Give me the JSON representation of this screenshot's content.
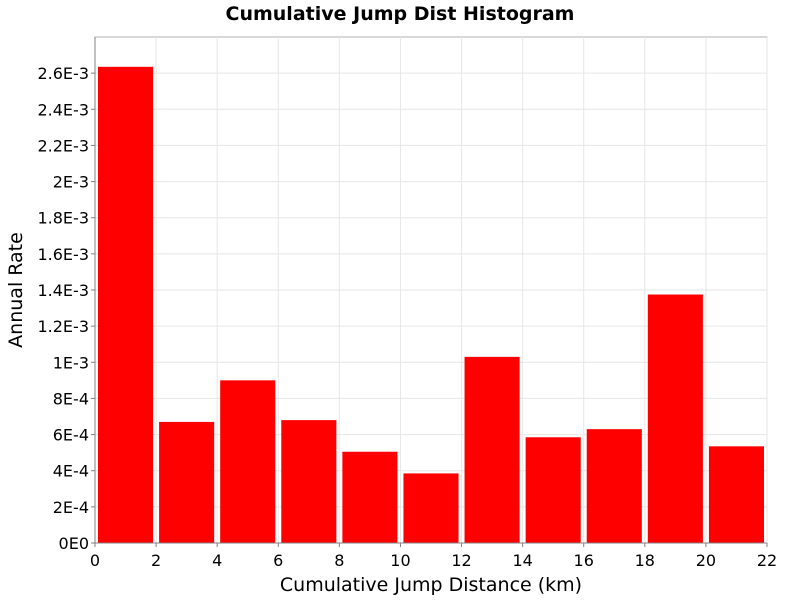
{
  "chart_data": {
    "type": "bar",
    "title": "Cumulative Jump Dist Histogram",
    "xlabel": "Cumulative Jump Distance (km)",
    "ylabel": "Annual Rate",
    "xlim": [
      0,
      22
    ],
    "ylim": [
      0,
      0.0028
    ],
    "x_ticks": [
      0,
      2,
      4,
      6,
      8,
      10,
      12,
      14,
      16,
      18,
      20,
      22
    ],
    "x_tick_labels": [
      "0",
      "2",
      "4",
      "6",
      "8",
      "10",
      "12",
      "14",
      "16",
      "18",
      "20",
      "22"
    ],
    "y_ticks": [
      0,
      0.0002,
      0.0004,
      0.0006,
      0.0008,
      0.001,
      0.0012,
      0.0014,
      0.0016,
      0.0018,
      0.002,
      0.0022,
      0.0024,
      0.0026
    ],
    "y_tick_labels": [
      "0E0",
      "2E-4",
      "4E-4",
      "6E-4",
      "8E-4",
      "1E-3",
      "1.2E-3",
      "1.4E-3",
      "1.6E-3",
      "1.8E-3",
      "2E-3",
      "2.2E-3",
      "2.4E-3",
      "2.6E-3"
    ],
    "bin_width": 2,
    "bins": [
      {
        "x_start": 0,
        "x_end": 2,
        "value": 0.002635
      },
      {
        "x_start": 2,
        "x_end": 4,
        "value": 0.00067
      },
      {
        "x_start": 4,
        "x_end": 6,
        "value": 0.0009
      },
      {
        "x_start": 6,
        "x_end": 8,
        "value": 0.00068
      },
      {
        "x_start": 8,
        "x_end": 10,
        "value": 0.000505
      },
      {
        "x_start": 10,
        "x_end": 12,
        "value": 0.000385
      },
      {
        "x_start": 12,
        "x_end": 14,
        "value": 0.00103
      },
      {
        "x_start": 14,
        "x_end": 16,
        "value": 0.000585
      },
      {
        "x_start": 16,
        "x_end": 18,
        "value": 0.00063
      },
      {
        "x_start": 18,
        "x_end": 20,
        "value": 0.001375
      },
      {
        "x_start": 20,
        "x_end": 22,
        "value": 0.000535
      }
    ],
    "bar_color": "#ff0000",
    "grid": true,
    "legend": "none"
  }
}
